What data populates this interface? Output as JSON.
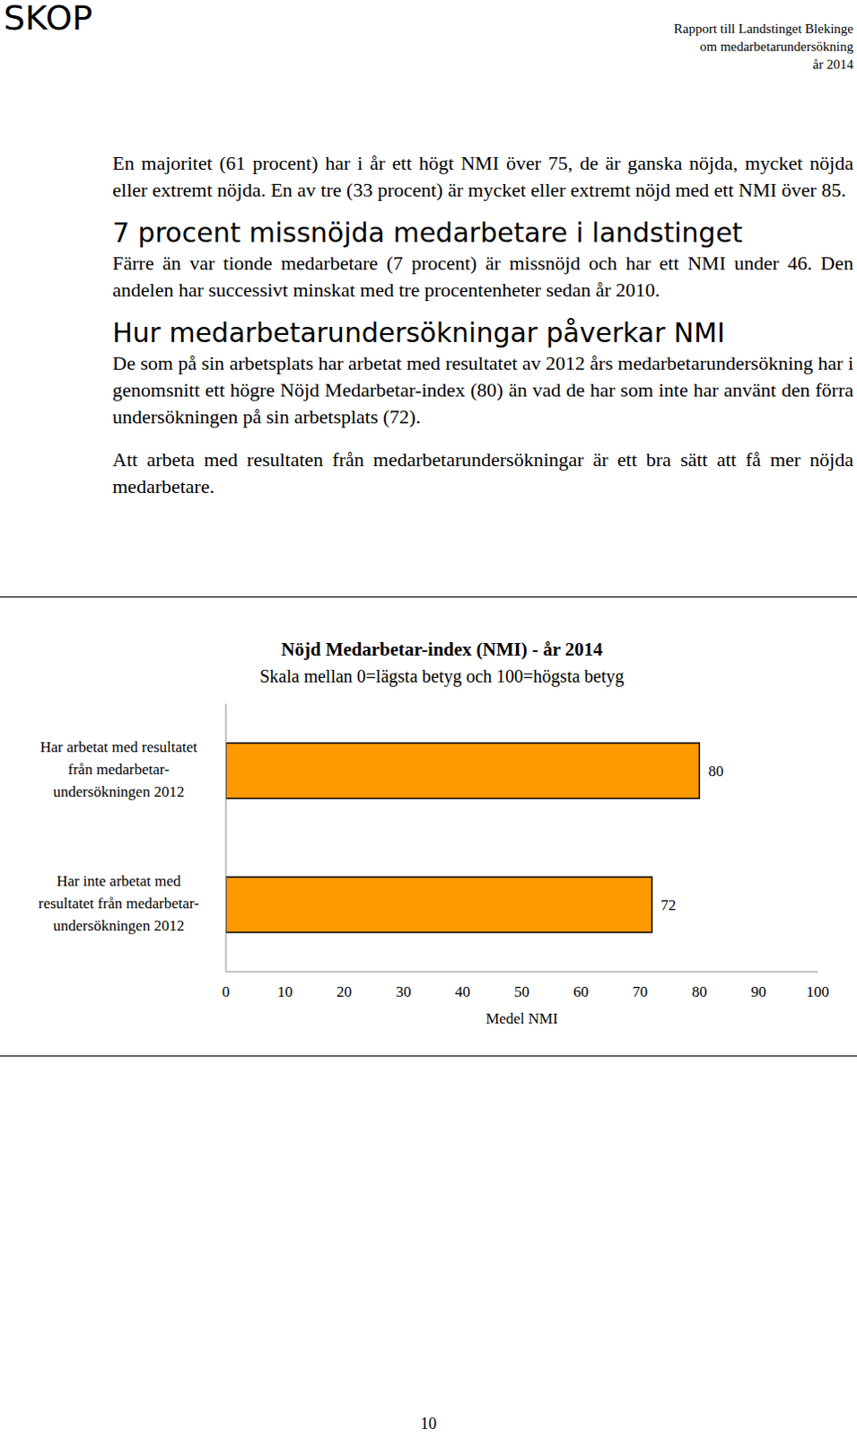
{
  "header": {
    "logo": "SKOP",
    "lines": [
      "Rapport till Landstinget Blekinge",
      "om medarbetarundersökning",
      "år 2014"
    ]
  },
  "body": [
    {
      "paragraphs": [
        "En majoritet (61 procent) har i år ett högt NMI över 75, de är ganska nöjda, mycket nöjda eller extremt nöjda. En av tre (33 procent) är mycket eller extremt nöjd med ett NMI över 85."
      ]
    },
    {
      "heading": "7 procent missnöjda medarbetare i landstinget",
      "paragraphs": [
        "Färre än  var tionde medarbetare  (7 procent) är missnöjd och har ett NMI under 46. Den andelen har successivt minskat med tre procentenheter sedan år 2010."
      ]
    },
    {
      "heading": "Hur medarbetarundersökningar påverkar NMI",
      "paragraphs": [
        "De som på sin arbetsplats har arbetat med resultatet av 2012 års medarbetarundersökning har i genomsnitt ett högre Nöjd Medarbetar-index (80) än vad de har som inte har använt den förra undersökningen på sin arbetsplats (72).",
        "Att arbeta med resultaten från medarbetarundersökningar är ett bra sätt att få mer nöjda medarbetare."
      ]
    }
  ],
  "chart_data": {
    "type": "bar",
    "orientation": "horizontal",
    "title": "Nöjd Medarbetar-index (NMI) - år 2014",
    "subtitle": "Skala mellan 0=lägsta betyg och 100=högsta betyg",
    "categories": [
      "Har arbetat med resultatet\nfrån medarbetar-\nundersökningen 2012",
      "Har inte arbetat med\nresultatet från medarbetar-\nundersökningen 2012"
    ],
    "values": [
      80,
      72
    ],
    "color": "#ff9900",
    "xlim": [
      0,
      100
    ],
    "xticks": [
      0,
      10,
      20,
      30,
      40,
      50,
      60,
      70,
      80,
      90,
      100
    ],
    "xlabel": "Medel NMI",
    "data_labels": true,
    "grid": false
  },
  "page_number": "10"
}
